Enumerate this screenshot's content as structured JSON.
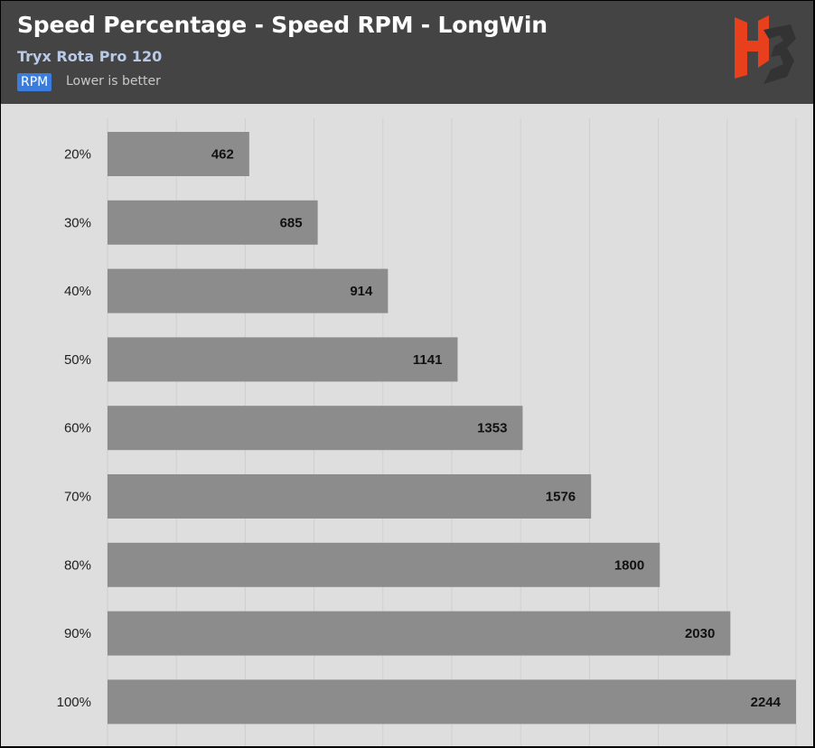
{
  "header": {
    "title": "Speed Percentage - Speed RPM - LongWin",
    "subtitle": "Tryx Rota Pro 120",
    "unit_badge": "RPM",
    "note": "Lower is better",
    "logo_icon": "hb-logo-icon"
  },
  "colors": {
    "header_bg": "#444444",
    "plot_bg": "#dedede",
    "bar": "#8c8c8c",
    "gridline": "#cfcfcf",
    "badge": "#3b7ddd",
    "logo_red": "#e8401c",
    "logo_dark": "#333333"
  },
  "chart_data": {
    "type": "bar",
    "orientation": "horizontal",
    "title": "Speed Percentage - Speed RPM - LongWin",
    "subtitle": "Tryx Rota Pro 120",
    "unit": "RPM",
    "note": "Lower is better",
    "categories": [
      "20%",
      "30%",
      "40%",
      "50%",
      "60%",
      "70%",
      "80%",
      "90%",
      "100%"
    ],
    "values": [
      462,
      685,
      914,
      1141,
      1353,
      1576,
      1800,
      2030,
      2244
    ],
    "xlim": [
      0,
      2244
    ],
    "grid": true,
    "legend": "none"
  }
}
